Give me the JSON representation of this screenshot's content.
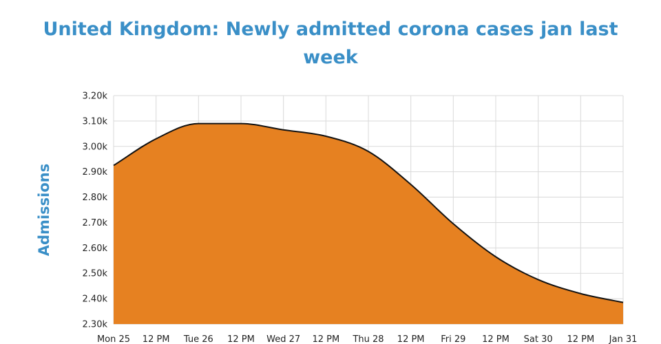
{
  "chart_data": {
    "type": "area",
    "title": "United Kingdom: Newly admitted corona cases jan last week",
    "xlabel": "",
    "ylabel": "Admissions",
    "x_tick_labels": [
      "Mon 25",
      "12 PM",
      "Tue 26",
      "12 PM",
      "Wed 27",
      "12 PM",
      "Thu 28",
      "12 PM",
      "Fri 29",
      "12 PM",
      "Sat 30",
      "12 PM",
      "Jan 31"
    ],
    "y_tick_labels": [
      "2.30k",
      "2.40k",
      "2.50k",
      "2.60k",
      "2.70k",
      "2.80k",
      "2.90k",
      "3.00k",
      "3.10k",
      "3.20k"
    ],
    "y_ticks": [
      2300,
      2400,
      2500,
      2600,
      2700,
      2800,
      2900,
      3000,
      3100,
      3200
    ],
    "ylim": [
      2300,
      3200
    ],
    "xlim": [
      "2021-01-25 00:00",
      "2021-01-31 00:00"
    ],
    "grid": true,
    "colors": {
      "fill": "#e68121",
      "line": "#111111",
      "grid": "#d9d9d9",
      "title": "#3a8fc7"
    },
    "series": [
      {
        "x": [
          "2021-01-25 00:00",
          "2021-01-25 12:00",
          "2021-01-26 00:00",
          "2021-01-26 12:00",
          "2021-01-27 00:00",
          "2021-01-27 12:00",
          "2021-01-28 00:00",
          "2021-01-28 12:00",
          "2021-01-29 00:00",
          "2021-01-29 12:00",
          "2021-01-30 00:00",
          "2021-01-30 12:00",
          "2021-01-31 00:00"
        ],
        "values": [
          2925,
          3030,
          3090,
          3090,
          3065,
          3040,
          2980,
          2850,
          2695,
          2565,
          2475,
          2420,
          2385
        ]
      }
    ]
  }
}
